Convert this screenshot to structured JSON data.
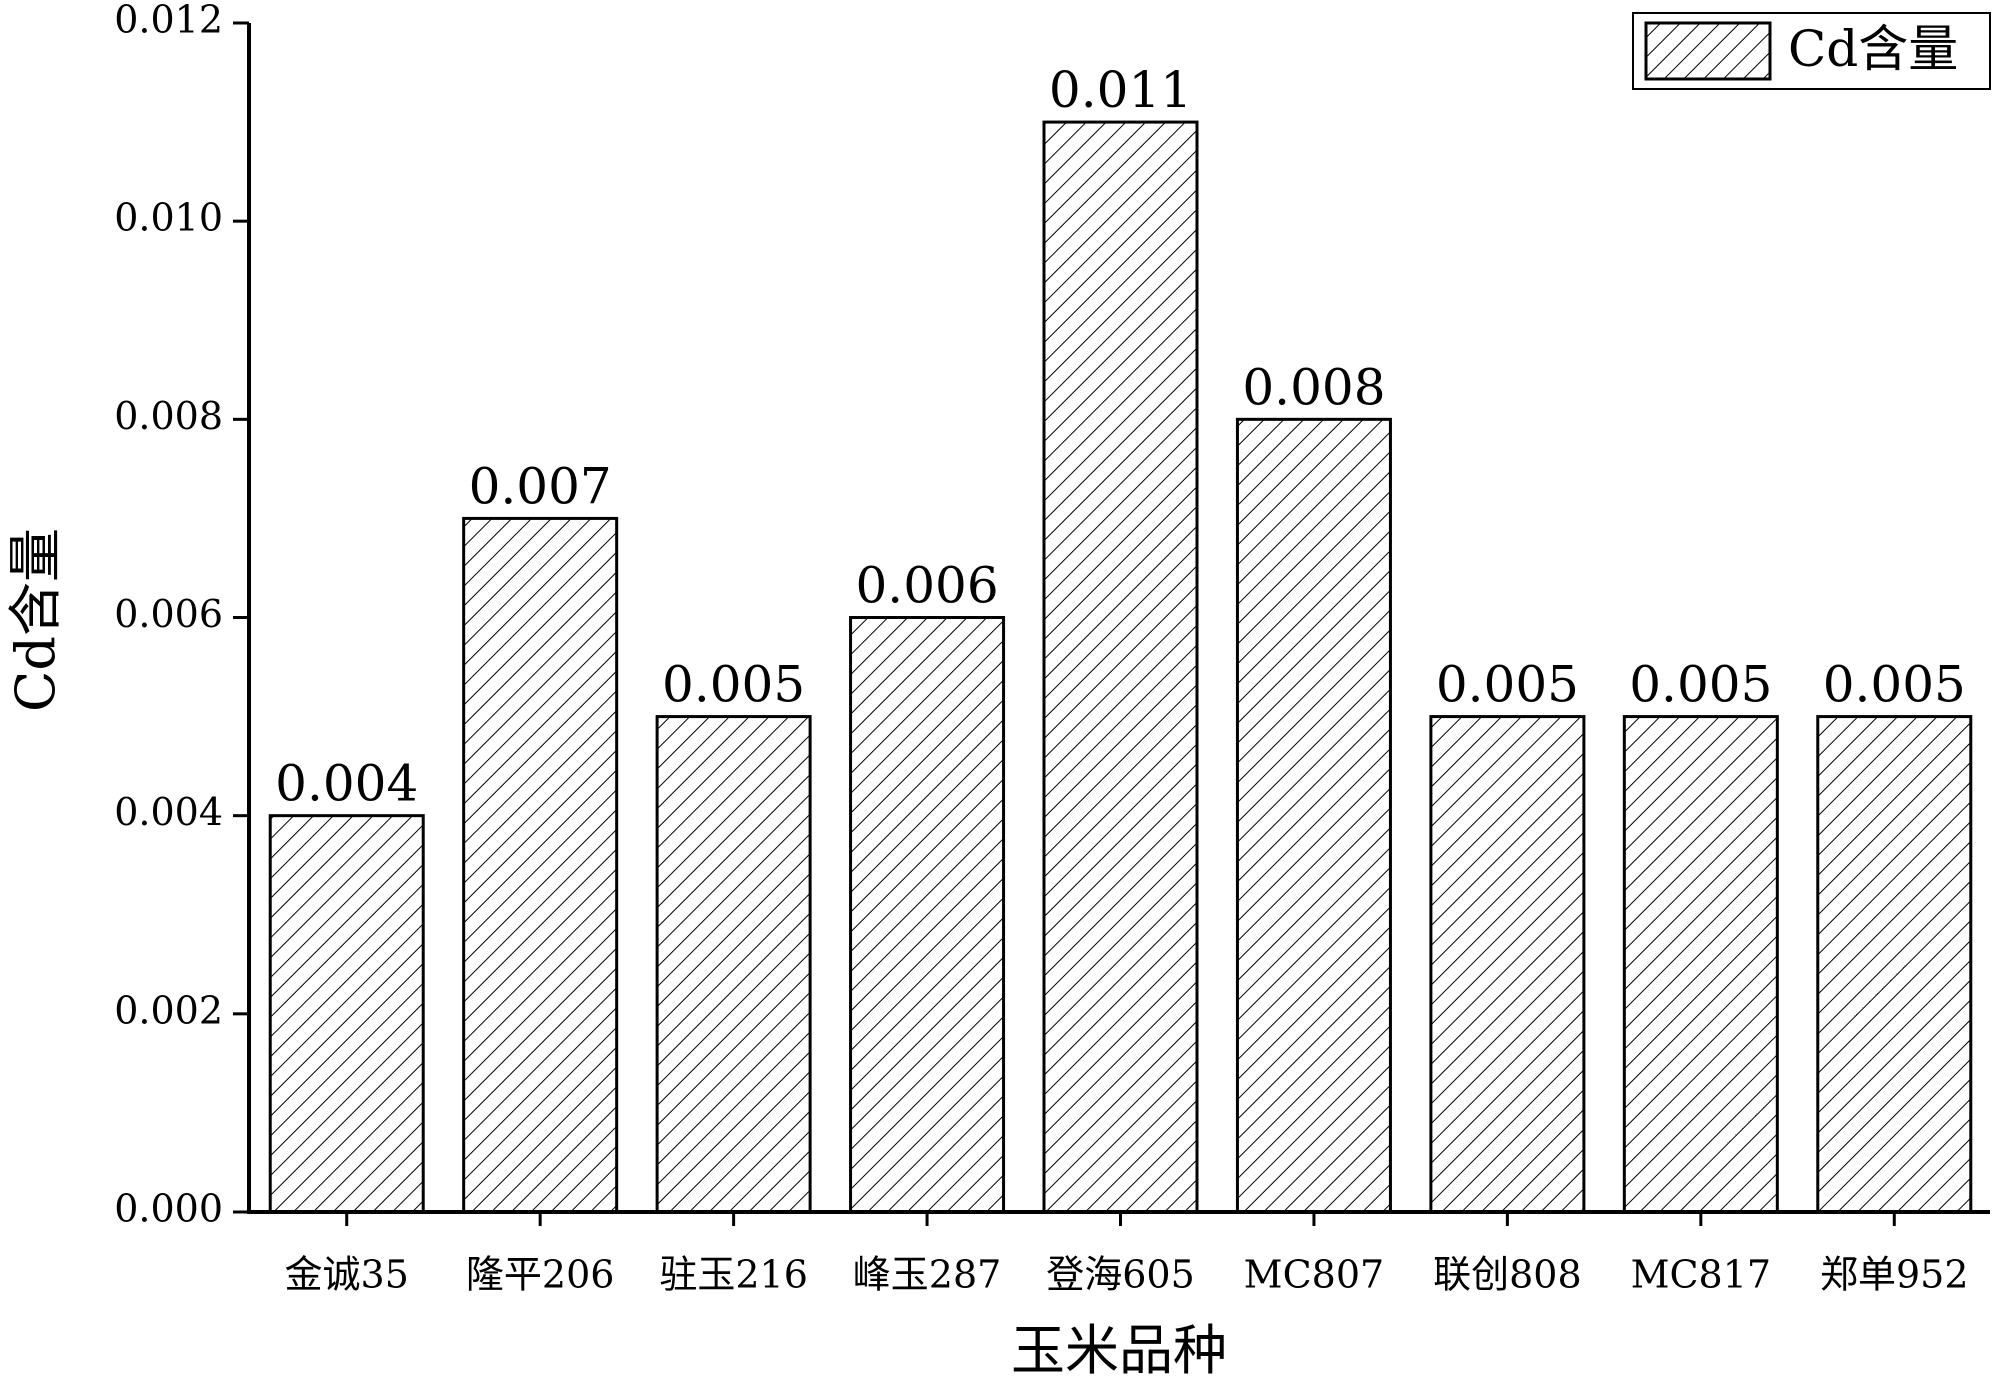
{
  "chart_data": {
    "type": "bar",
    "x_label": "玉米品种",
    "y_label": "Cd含量",
    "categories": [
      "金诚35",
      "隆平206",
      "驻玉216",
      "峰玉287",
      "登海605",
      "MC807",
      "联创808",
      "MC817",
      "郑单952"
    ],
    "series": [
      {
        "name": "Cd含量",
        "color": "#000000",
        "values": [
          0.004,
          0.007,
          0.005,
          0.006,
          0.011,
          0.008,
          0.005,
          0.005,
          0.005
        ]
      }
    ],
    "ylim": [
      0,
      0.012
    ],
    "yticks": [
      {
        "value": 0,
        "label": "0.000"
      },
      {
        "value": 0.002,
        "label": "0.002"
      },
      {
        "value": 0.004,
        "label": "0.004"
      },
      {
        "value": 0.006,
        "label": "0.006"
      },
      {
        "value": 0.008,
        "label": "0.008"
      },
      {
        "value": 0.01,
        "label": "0.010"
      },
      {
        "value": 0.012,
        "label": "0.012"
      }
    ],
    "legend": "top-right",
    "grid": false
  }
}
